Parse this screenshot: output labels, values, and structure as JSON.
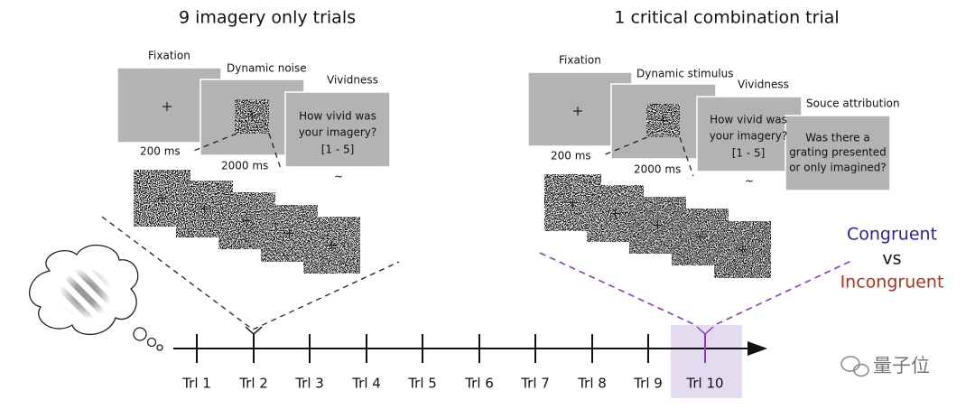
{
  "titles": {
    "left": "9 imagery only trials",
    "right": "1 critical combination trial"
  },
  "left_panel": {
    "screens": [
      {
        "label": "Fixation"
      },
      {
        "label": "Dynamic noise"
      },
      {
        "label": "Vividness",
        "text": [
          "How vivid was",
          "your imagery?",
          "[1 - 5]"
        ]
      }
    ],
    "durations": [
      "200 ms",
      "2000 ms"
    ],
    "tilde": "~"
  },
  "right_panel": {
    "screens": [
      {
        "label": "Fixation"
      },
      {
        "label": "Dynamic stimulus"
      },
      {
        "label": "Vividness",
        "text": [
          "How vivid was",
          "your imagery?",
          "[1 - 5]"
        ]
      },
      {
        "label": "Souce attribution",
        "text": [
          "Was there a",
          "grating presented",
          "or only imagined?"
        ]
      }
    ],
    "durations": [
      "200 ms",
      "2000 ms"
    ],
    "tilde": "~"
  },
  "comparison": {
    "top": "Congruent",
    "middle": "vs",
    "bottom": "Incongruent"
  },
  "timeline": {
    "trials": [
      "Trl 1",
      "Trl 2",
      "Trl 3",
      "Trl 4",
      "Trl 5",
      "Trl 6",
      "Trl 7",
      "Trl 8",
      "Trl 9",
      "Trl 10"
    ]
  },
  "watermark": "量子位"
}
